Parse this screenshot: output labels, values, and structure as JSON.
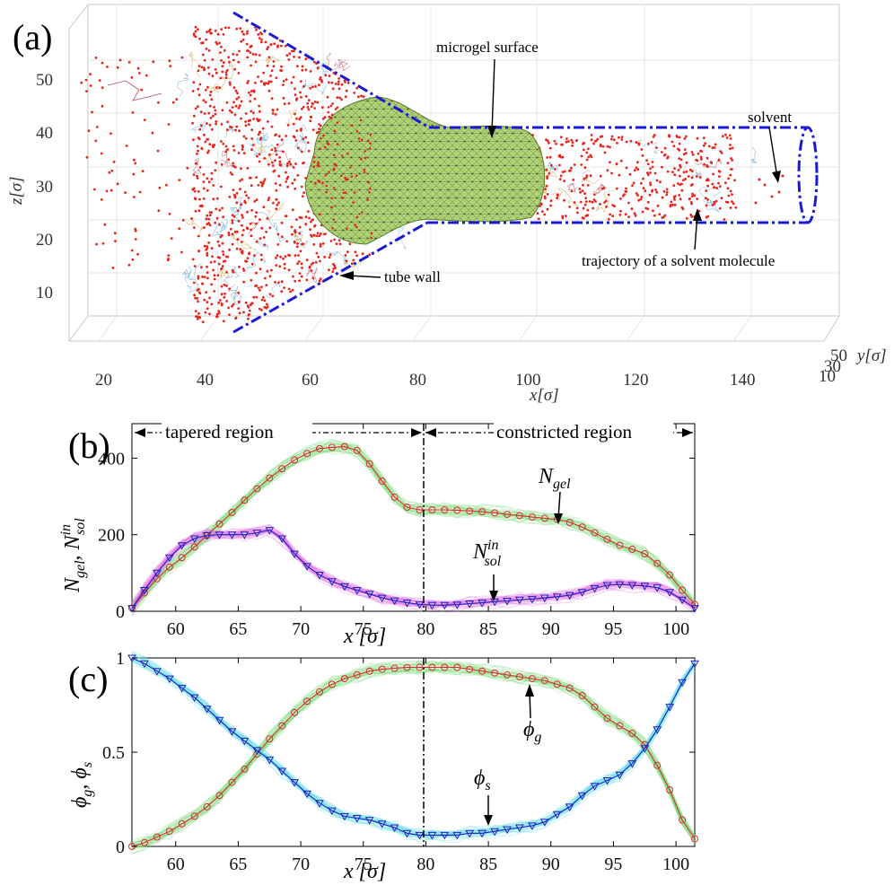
{
  "panels": {
    "a": {
      "label": "(a)",
      "x_ticks": [
        "20",
        "40",
        "60",
        "80",
        "100",
        "120",
        "140"
      ],
      "z_ticks": [
        "10",
        "20",
        "30",
        "40",
        "50"
      ],
      "y_ticks": [
        "50",
        "30",
        "10"
      ],
      "xlabel": "x[σ]",
      "ylabel": "y[σ]",
      "zlabel": "z[σ]",
      "annotations": {
        "microgel": "microgel surface",
        "solvent": "solvent",
        "trajectory": "trajectory of a solvent molecule",
        "tube_wall": "tube wall"
      },
      "colors": {
        "gel": "#a9cf6f",
        "solvent": "#e8241c",
        "wall": "#1a1ad6"
      }
    },
    "b": {
      "label": "(b)",
      "tapered": "tapered region",
      "constricted": "constricted region",
      "ylabel": "N_gel, N_sol^in",
      "xlabel": "x [σ]",
      "ngel_label": "N",
      "ngel_sub": "gel",
      "nsol_label": "N",
      "nsol_sub": "sol",
      "nsol_sup": "in"
    },
    "c": {
      "label": "(c)",
      "ylabel": "ϕ_g, ϕ_s",
      "xlabel": "x [σ]",
      "phig_label": "ϕ",
      "phig_sub": "g",
      "phis_label": "ϕ",
      "phis_sub": "s"
    }
  },
  "chart_data": [
    {
      "id": "b",
      "type": "line",
      "title": "",
      "xlabel": "x [σ]",
      "ylabel": "N_gel, N_sol^in",
      "xlim": [
        56.5,
        101.5
      ],
      "ylim": [
        0,
        490
      ],
      "xticks": [
        60,
        65,
        70,
        75,
        80,
        85,
        90,
        95,
        100
      ],
      "yticks": [
        0,
        200,
        400
      ],
      "divider_x": 80,
      "series": [
        {
          "name": "N_gel",
          "color": "#d62f2f",
          "band_color": "#7ee07e",
          "marker": "circle",
          "x": [
            56.5,
            57.5,
            58.5,
            59.5,
            60.5,
            61.5,
            62.5,
            63.5,
            64.5,
            65.5,
            66.5,
            67.5,
            68.5,
            69.5,
            70.5,
            71.5,
            72.5,
            73.5,
            74.5,
            75.5,
            76.5,
            77.5,
            78.5,
            79.5,
            80.5,
            81.5,
            82.5,
            83.5,
            84.5,
            85.5,
            86.5,
            87.5,
            88.5,
            89.5,
            90.5,
            91.5,
            92.5,
            93.5,
            94.5,
            95.5,
            96.5,
            97.5,
            98.5,
            99.5,
            100.5,
            101.5
          ],
          "values": [
            8,
            48,
            85,
            115,
            140,
            168,
            198,
            228,
            258,
            290,
            320,
            348,
            372,
            395,
            412,
            425,
            428,
            430,
            420,
            385,
            340,
            298,
            272,
            265,
            265,
            265,
            264,
            262,
            260,
            257,
            253,
            250,
            246,
            243,
            240,
            232,
            220,
            205,
            188,
            172,
            162,
            150,
            125,
            95,
            55,
            18
          ]
        },
        {
          "name": "N_sol^in",
          "color": "#2020c0",
          "band_color": "#e36ae3",
          "marker": "triangle-down",
          "x": [
            56.5,
            57.5,
            58.5,
            59.5,
            60.5,
            61.5,
            62.5,
            63.5,
            64.5,
            65.5,
            66.5,
            67.5,
            68.5,
            69.5,
            70.5,
            71.5,
            72.5,
            73.5,
            74.5,
            75.5,
            76.5,
            77.5,
            78.5,
            79.5,
            80.5,
            81.5,
            82.5,
            83.5,
            84.5,
            85.5,
            86.5,
            87.5,
            88.5,
            89.5,
            90.5,
            91.5,
            92.5,
            93.5,
            94.5,
            95.5,
            96.5,
            97.5,
            98.5,
            99.5,
            100.5,
            101.5
          ],
          "values": [
            8,
            55,
            100,
            140,
            172,
            190,
            198,
            200,
            200,
            200,
            205,
            212,
            190,
            150,
            118,
            95,
            78,
            65,
            55,
            45,
            35,
            28,
            22,
            18,
            16,
            16,
            17,
            20,
            22,
            25,
            27,
            30,
            32,
            35,
            38,
            42,
            50,
            60,
            68,
            70,
            68,
            66,
            62,
            50,
            30,
            8
          ]
        }
      ]
    },
    {
      "id": "c",
      "type": "line",
      "title": "",
      "xlabel": "x [σ]",
      "ylabel": "ϕ_g, ϕ_s",
      "xlim": [
        56.5,
        101.5
      ],
      "ylim": [
        0,
        1
      ],
      "xticks": [
        60,
        65,
        70,
        75,
        80,
        85,
        90,
        95,
        100
      ],
      "yticks": [
        0,
        0.5,
        1
      ],
      "divider_x": 80,
      "series": [
        {
          "name": "ϕ_g",
          "color": "#d62f2f",
          "band_color": "#7ee07e",
          "marker": "circle",
          "x": [
            56.5,
            57.5,
            58.5,
            59.5,
            60.5,
            61.5,
            62.5,
            63.5,
            64.5,
            65.5,
            66.5,
            67.5,
            68.5,
            69.5,
            70.5,
            71.5,
            72.5,
            73.5,
            74.5,
            75.5,
            76.5,
            77.5,
            78.5,
            79.5,
            80.5,
            81.5,
            82.5,
            83.5,
            84.5,
            85.5,
            86.5,
            87.5,
            88.5,
            89.5,
            90.5,
            91.5,
            92.5,
            93.5,
            94.5,
            95.5,
            96.5,
            97.5,
            98.5,
            99.5,
            100.5,
            101.5
          ],
          "values": [
            0.0,
            0.02,
            0.05,
            0.08,
            0.12,
            0.16,
            0.21,
            0.27,
            0.34,
            0.41,
            0.49,
            0.57,
            0.64,
            0.71,
            0.77,
            0.82,
            0.86,
            0.89,
            0.91,
            0.93,
            0.94,
            0.945,
            0.95,
            0.95,
            0.95,
            0.95,
            0.95,
            0.94,
            0.93,
            0.92,
            0.91,
            0.9,
            0.89,
            0.88,
            0.86,
            0.84,
            0.8,
            0.74,
            0.68,
            0.64,
            0.6,
            0.54,
            0.43,
            0.3,
            0.14,
            0.04
          ]
        },
        {
          "name": "ϕ_s",
          "color": "#2020c0",
          "band_color": "#62e0ea",
          "marker": "triangle-down",
          "x": [
            56.5,
            57.5,
            58.5,
            59.5,
            60.5,
            61.5,
            62.5,
            63.5,
            64.5,
            65.5,
            66.5,
            67.5,
            68.5,
            69.5,
            70.5,
            71.5,
            72.5,
            73.5,
            74.5,
            75.5,
            76.5,
            77.5,
            78.5,
            79.5,
            80.5,
            81.5,
            82.5,
            83.5,
            84.5,
            85.5,
            86.5,
            87.5,
            88.5,
            89.5,
            90.5,
            91.5,
            92.5,
            93.5,
            94.5,
            95.5,
            96.5,
            97.5,
            98.5,
            99.5,
            100.5,
            101.5
          ],
          "values": [
            1.0,
            0.97,
            0.93,
            0.89,
            0.84,
            0.79,
            0.73,
            0.67,
            0.61,
            0.56,
            0.51,
            0.46,
            0.4,
            0.34,
            0.28,
            0.23,
            0.19,
            0.16,
            0.15,
            0.14,
            0.12,
            0.1,
            0.07,
            0.06,
            0.06,
            0.06,
            0.06,
            0.07,
            0.07,
            0.08,
            0.09,
            0.1,
            0.11,
            0.13,
            0.17,
            0.21,
            0.27,
            0.32,
            0.35,
            0.38,
            0.44,
            0.52,
            0.62,
            0.74,
            0.87,
            0.97
          ]
        }
      ]
    }
  ]
}
